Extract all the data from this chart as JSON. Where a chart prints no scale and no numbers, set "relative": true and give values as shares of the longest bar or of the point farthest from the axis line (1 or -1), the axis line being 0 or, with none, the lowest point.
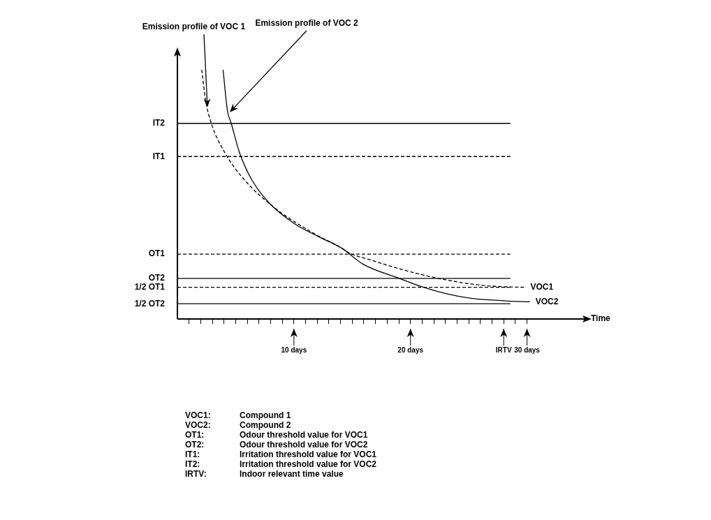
{
  "chart_data": {
    "type": "line",
    "relative": true,
    "xlabel": "Time",
    "xlim": [
      0,
      35
    ],
    "xticks": [
      {
        "value": 1,
        "label": null
      },
      {
        "value": 2,
        "label": null
      },
      {
        "value": 3,
        "label": null
      },
      {
        "value": 4,
        "label": null
      },
      {
        "value": 5,
        "label": null
      },
      {
        "value": 6,
        "label": null
      },
      {
        "value": 7,
        "label": null
      },
      {
        "value": 8,
        "label": null
      },
      {
        "value": 9,
        "label": null
      },
      {
        "value": 10,
        "label": "10 days"
      },
      {
        "value": 11,
        "label": null
      },
      {
        "value": 12,
        "label": null
      },
      {
        "value": 13,
        "label": null
      },
      {
        "value": 14,
        "label": null
      },
      {
        "value": 15,
        "label": null
      },
      {
        "value": 16,
        "label": null
      },
      {
        "value": 17,
        "label": null
      },
      {
        "value": 18,
        "label": null
      },
      {
        "value": 19,
        "label": null
      },
      {
        "value": 20,
        "label": "20 days"
      },
      {
        "value": 21,
        "label": null
      },
      {
        "value": 22,
        "label": null
      },
      {
        "value": 23,
        "label": null
      },
      {
        "value": 24,
        "label": null
      },
      {
        "value": 25,
        "label": null
      },
      {
        "value": 26,
        "label": null
      },
      {
        "value": 27,
        "label": null
      },
      {
        "value": 28,
        "label": "IRTV"
      },
      {
        "value": 29,
        "label": null
      },
      {
        "value": 30,
        "label": "30 days"
      }
    ],
    "series": [
      {
        "name": "VOC1",
        "color": "#000000",
        "line_style": "dashed",
        "x": [
          2.09,
          2.41,
          2.91,
          4.05,
          5.76,
          8.29,
          11.65,
          14.18,
          14.62,
          16.71,
          19.87,
          23.04,
          26.2,
          27.72,
          29.81
        ],
        "values": [
          1.0,
          0.881,
          0.785,
          0.669,
          0.558,
          0.448,
          0.345,
          0.282,
          0.268,
          0.235,
          0.191,
          0.157,
          0.135,
          0.13,
          0.127
        ]
      },
      {
        "name": "VOC2",
        "color": "#000000",
        "line_style": "solid",
        "x": [
          3.92,
          4.3,
          4.62,
          5.32,
          6.39,
          7.85,
          10.0,
          12.09,
          14.18,
          15.89,
          19.05,
          20.95,
          23.04,
          25.19,
          27.28,
          28.35,
          30.25
        ],
        "values": [
          1.0,
          0.834,
          0.785,
          0.669,
          0.558,
          0.467,
          0.384,
          0.331,
          0.282,
          0.221,
          0.163,
          0.13,
          0.102,
          0.083,
          0.075,
          0.072,
          0.069
        ]
      }
    ],
    "ref_lines": [
      {
        "axis": "y",
        "value": 0.785,
        "label": "IT2",
        "line_style": "solid"
      },
      {
        "axis": "y",
        "value": 0.652,
        "label": "IT1",
        "line_style": "dashed"
      },
      {
        "axis": "y",
        "value": 0.26,
        "label": "OT1",
        "line_style": "dashed"
      },
      {
        "axis": "y",
        "value": 0.163,
        "label": "OT2",
        "line_style": "solid"
      },
      {
        "axis": "y",
        "value": 0.127,
        "label": "1/2 OT1",
        "line_style": "dashed"
      },
      {
        "axis": "y",
        "value": 0.061,
        "label": "1/2 OT2",
        "line_style": "solid"
      }
    ],
    "annotations": [
      {
        "text": "Emission profile of VOC 1",
        "x": 2.6,
        "y": 0.85
      },
      {
        "text": "Emission profile of VOC 2",
        "x": 4.5,
        "y": 0.83
      },
      "VOC1: Compound 1",
      "VOC2: Compound 2",
      "OT1: Odour threshold value for VOC1",
      "OT2: Odour threshold value for VOC2",
      "IT1: Irritation threshold value for VOC1",
      "IT2: Irritation threshold value for VOC2",
      "IRTV: Indoor relevant time value"
    ]
  }
}
